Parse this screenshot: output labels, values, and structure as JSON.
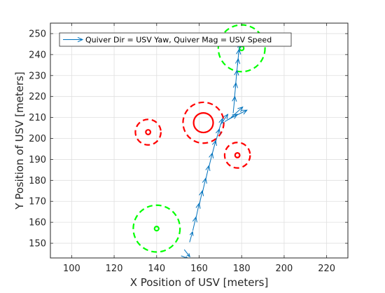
{
  "chart_data": {
    "type": "scatter",
    "xlabel": "X Position of USV [meters]",
    "ylabel": "Y Position of USV [meters]",
    "xlim": [
      90,
      230
    ],
    "ylim": [
      143,
      255
    ],
    "xticks": [
      100,
      120,
      140,
      160,
      180,
      200,
      220
    ],
    "yticks": [
      150,
      160,
      170,
      180,
      190,
      200,
      210,
      220,
      230,
      240,
      250
    ],
    "grid": true,
    "legend": {
      "position": "top",
      "entries": [
        "Quiver Dir = USV Yaw, Quiver Mag = USV Speed"
      ]
    },
    "colors": {
      "quiver": "#0072BD",
      "obstacle": "#FF0000",
      "waypoint": "#00FF00",
      "axes": "#262626",
      "grid": "#DFDFDF"
    },
    "series": [
      {
        "name": "Quiver Dir = USV Yaw, Quiver Mag = USV Speed",
        "type": "quiver",
        "points": [
          {
            "x": 151.5,
            "y": 144.0,
            "u": 3.2,
            "v": -1.2
          },
          {
            "x": 153.0,
            "y": 147.0,
            "u": 2.6,
            "v": -3.4
          },
          {
            "x": 155.5,
            "y": 150.5,
            "u": 1.4,
            "v": 5.0
          },
          {
            "x": 157.0,
            "y": 156.0,
            "u": 1.5,
            "v": 6.5
          },
          {
            "x": 158.5,
            "y": 162.0,
            "u": 1.5,
            "v": 7.0
          },
          {
            "x": 160.0,
            "y": 168.0,
            "u": 1.5,
            "v": 7.0
          },
          {
            "x": 161.5,
            "y": 174.0,
            "u": 1.6,
            "v": 7.0
          },
          {
            "x": 163.0,
            "y": 180.0,
            "u": 1.6,
            "v": 7.0
          },
          {
            "x": 164.5,
            "y": 186.0,
            "u": 1.7,
            "v": 7.0
          },
          {
            "x": 166.0,
            "y": 192.0,
            "u": 1.8,
            "v": 7.0
          },
          {
            "x": 167.5,
            "y": 197.5,
            "u": 2.0,
            "v": 7.0
          },
          {
            "x": 169.0,
            "y": 203.0,
            "u": 2.0,
            "v": 6.5
          },
          {
            "x": 170.0,
            "y": 206.5,
            "u": 3.5,
            "v": 5.0
          },
          {
            "x": 172.0,
            "y": 208.0,
            "u": 6.0,
            "v": 3.5
          },
          {
            "x": 173.5,
            "y": 209.0,
            "u": 9.0,
            "v": 4.5
          },
          {
            "x": 175.0,
            "y": 210.0,
            "u": 5.5,
            "v": 5.0
          },
          {
            "x": 176.0,
            "y": 212.0,
            "u": 0.8,
            "v": 8.0
          },
          {
            "x": 176.5,
            "y": 218.0,
            "u": 0.8,
            "v": 8.5
          },
          {
            "x": 177.0,
            "y": 224.0,
            "u": 0.8,
            "v": 8.5
          },
          {
            "x": 177.5,
            "y": 230.0,
            "u": 0.9,
            "v": 8.0
          },
          {
            "x": 178.0,
            "y": 235.0,
            "u": 0.8,
            "v": 7.5
          },
          {
            "x": 178.5,
            "y": 240.0,
            "u": 0.6,
            "v": 5.0
          }
        ]
      },
      {
        "name": "",
        "type": "circles",
        "color": "#FF0000",
        "circles": [
          {
            "x": 136.0,
            "y": 203.0,
            "r_solid": 1.1,
            "r_dashed": 6.0
          },
          {
            "x": 162.0,
            "y": 207.5,
            "r_solid": 4.6,
            "r_dashed": 9.6
          },
          {
            "x": 178.0,
            "y": 192.0,
            "r_solid": 1.1,
            "r_dashed": 6.0
          }
        ]
      },
      {
        "name": "",
        "type": "circles",
        "color": "#00FF00",
        "circles": [
          {
            "x": 140.0,
            "y": 157.0,
            "r_solid": 1.0,
            "r_dashed": 11.0
          },
          {
            "x": 180.0,
            "y": 243.0,
            "r_solid": 1.0,
            "r_dashed": 11.0
          }
        ]
      }
    ]
  }
}
